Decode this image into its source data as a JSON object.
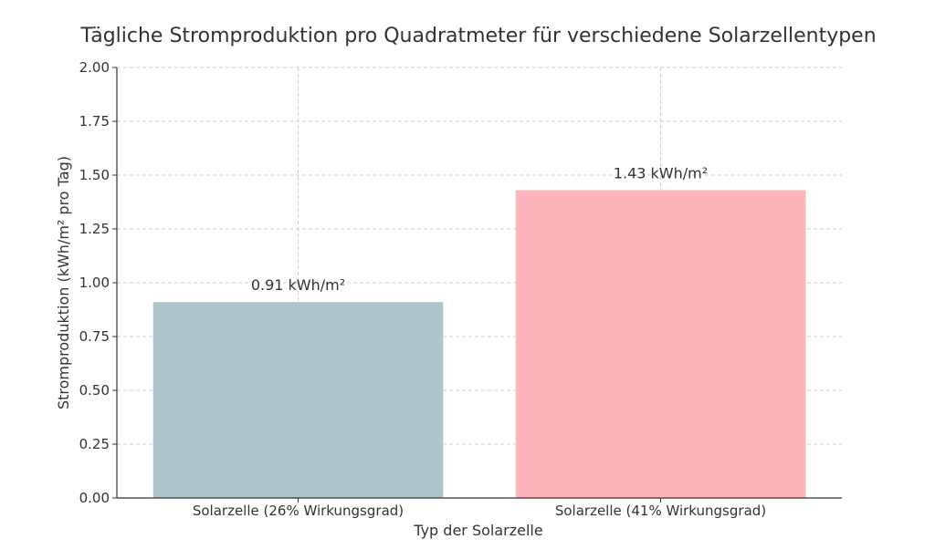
{
  "chart_data": {
    "type": "bar",
    "title": "Tägliche Stromproduktion pro Quadratmeter für verschiedene Solarzellentypen",
    "xlabel": "Typ der Solarzelle",
    "ylabel": "Stromproduktion (kWh/m² pro Tag)",
    "categories": [
      "Solarzelle (26% Wirkungsgrad)",
      "Solarzelle (41% Wirkungsgrad)"
    ],
    "values": [
      0.91,
      1.43
    ],
    "value_labels": [
      "0.91 kWh/m²",
      "1.43 kWh/m²"
    ],
    "colors": [
      "#aec4cb",
      "#ffb3ba"
    ],
    "ylim": [
      0,
      2.0
    ],
    "yticks": [
      "0.00",
      "0.25",
      "0.50",
      "0.75",
      "1.00",
      "1.25",
      "1.50",
      "1.75",
      "2.00"
    ],
    "grid": true
  }
}
